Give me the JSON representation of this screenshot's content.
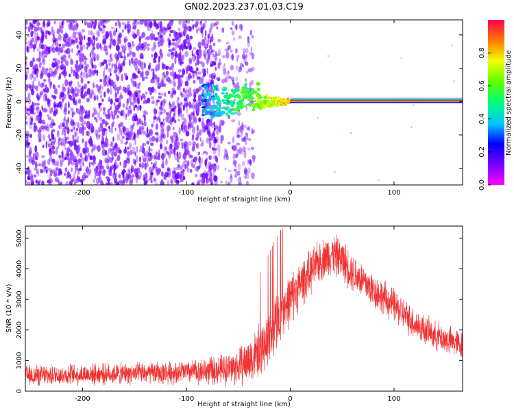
{
  "title": "GN02.2023.237.01.03.C19",
  "chart_data": [
    {
      "type": "heatmap",
      "xlabel": "Height of straight line (km)",
      "ylabel": "Frequency (Hz)",
      "xlim": [
        -255,
        166
      ],
      "ylim": [
        -50,
        49
      ],
      "xticks": [
        -200,
        -100,
        0,
        100
      ],
      "yticks": [
        -40,
        -20,
        0,
        20,
        40
      ],
      "x_tick_labels": [
        "-200",
        "-100",
        "0",
        "100"
      ],
      "y_tick_labels": [
        "-40",
        "-20",
        "0",
        "20",
        "40"
      ],
      "colorbar": {
        "label": "Normalized spectral amplitude",
        "range": [
          0,
          1
        ],
        "ticks": [
          0.0,
          0.2,
          0.4,
          0.6,
          0.8
        ],
        "tick_labels": [
          "0.0",
          "0.2",
          "0.4",
          "0.6",
          "0.8"
        ],
        "colormap": "gist_rainbow_r"
      },
      "features": {
        "noise_region_x": [
          -255,
          -50
        ],
        "noise_amplitude": [
          0.05,
          0.3
        ],
        "transition_x": [
          -85,
          0
        ],
        "transition_frequency": [
          -8,
          10
        ],
        "carrier_frequency": 0.5,
        "carrier_x": [
          0,
          166
        ],
        "carrier_amplitude": 0.95
      }
    },
    {
      "type": "line",
      "xlabel": "Height of straight line (km)",
      "ylabel": "SNR (10 * v/v)",
      "xlim": [
        -255,
        166
      ],
      "ylim": [
        0,
        5400
      ],
      "xticks": [
        -200,
        -100,
        0,
        100
      ],
      "yticks": [
        0,
        1000,
        2000,
        3000,
        4000,
        5000
      ],
      "x_tick_labels": [
        "-200",
        "-100",
        "0",
        "100"
      ],
      "y_tick_labels": [
        "0",
        "1000",
        "2000",
        "3000",
        "4000",
        "5000"
      ],
      "color": "#f03232",
      "envelope": {
        "x": [
          -255,
          -220,
          -180,
          -140,
          -100,
          -70,
          -50,
          -40,
          -30,
          -20,
          -10,
          0,
          10,
          20,
          30,
          40,
          50,
          60,
          80,
          100,
          120,
          140,
          166
        ],
        "y": [
          500,
          530,
          560,
          580,
          620,
          680,
          800,
          1000,
          1300,
          1800,
          2500,
          3000,
          3500,
          3900,
          4300,
          4500,
          4300,
          3900,
          3300,
          2800,
          2200,
          1800,
          1500
        ]
      },
      "noise_amplitude": [
        400,
        400,
        400,
        420,
        450,
        550,
        700,
        900,
        1000,
        1100,
        1100,
        1000,
        900,
        850,
        800,
        800,
        800,
        750,
        700,
        650,
        600,
        550,
        550
      ]
    }
  ]
}
